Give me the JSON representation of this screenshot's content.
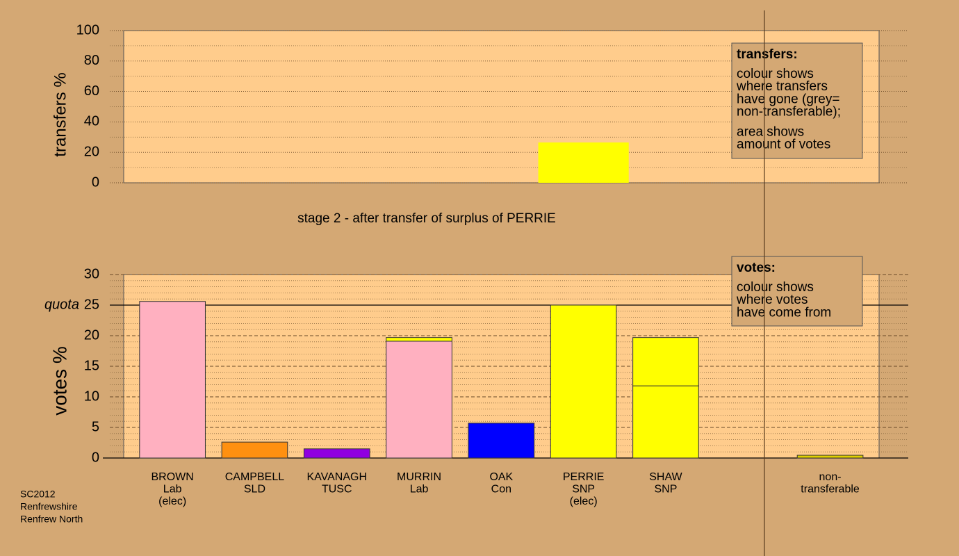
{
  "title": "stage 2 - after transfer of surplus of PERRIE",
  "footer": [
    "SC2012",
    "Renfrewshire",
    "Renfrew North"
  ],
  "chart_data": [
    {
      "type": "bar",
      "ylabel": "transfers %",
      "ylim": [
        0,
        100
      ],
      "yticks": [
        0,
        20,
        40,
        60,
        80,
        100
      ],
      "yminor_ticks": [
        10,
        30,
        50,
        70,
        90
      ],
      "values": [
        null,
        null,
        null,
        null,
        null,
        26.5,
        null,
        null,
        null
      ],
      "color": "#ffff00",
      "note": {
        "title": "transfers:",
        "paragraphs": [
          [
            "colour shows",
            "where transfers",
            "have gone (grey=",
            "non-transferable);"
          ],
          [
            "area shows",
            "amount of votes"
          ]
        ]
      }
    },
    {
      "type": "stacked_bar",
      "ylabel": "votes %",
      "ylim": [
        0,
        30
      ],
      "yticks": [
        0,
        5,
        10,
        15,
        20,
        25,
        30
      ],
      "yminor_ticks": [
        1,
        2,
        3,
        4,
        6,
        7,
        8,
        9,
        11,
        12,
        13,
        14,
        16,
        17,
        18,
        19,
        21,
        22,
        23,
        24,
        26,
        27,
        28,
        29
      ],
      "quota": {
        "label": "quota",
        "value": 25
      },
      "categories": [
        [
          "BROWN",
          "Lab",
          "(elec)"
        ],
        [
          "CAMPBELL",
          "SLD"
        ],
        [
          "KAVANAGH",
          "TUSC"
        ],
        [
          "MURRIN",
          "Lab"
        ],
        [
          "OAK",
          "Con"
        ],
        [
          "PERRIE",
          "SNP",
          "(elec)"
        ],
        [
          "SHAW",
          "SNP"
        ],
        null,
        [
          "non-",
          "transferable"
        ]
      ],
      "series": [
        {
          "colors": [
            "#ffb0c0",
            "#ff9010",
            "#9000e0",
            "#ffb0c0",
            "#0000ff",
            "#ffff00",
            "#ffff00",
            null,
            "#e0d000"
          ],
          "values": [
            25.6,
            2.6,
            1.5,
            19.1,
            5.7,
            25.0,
            11.8,
            null,
            0.45
          ]
        },
        {
          "color": "#ffff00",
          "values": [
            null,
            null,
            null,
            0.6,
            null,
            null,
            7.9,
            null,
            null
          ]
        }
      ],
      "note": {
        "title": "votes:",
        "paragraphs": [
          [
            "colour shows",
            "where votes",
            "have come from"
          ]
        ]
      }
    }
  ]
}
